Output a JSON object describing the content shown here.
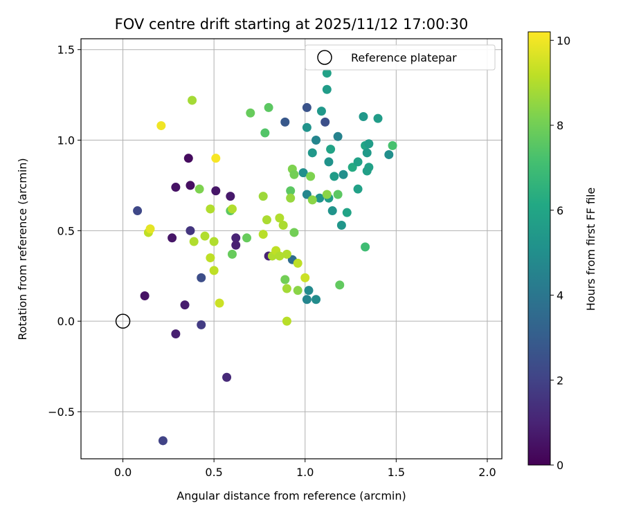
{
  "chart_data": {
    "type": "scatter",
    "title": "FOV centre drift starting at 2025/11/12 17:00:30",
    "xlabel": "Angular distance from reference (arcmin)",
    "ylabel": "Rotation from reference (arcmin)",
    "xlim": [
      -0.23,
      2.08
    ],
    "ylim": [
      -0.76,
      1.56
    ],
    "xticks": [
      0.0,
      0.5,
      1.0,
      1.5,
      2.0
    ],
    "xtick_labels": [
      "0.0",
      "0.5",
      "1.0",
      "1.5",
      "2.0"
    ],
    "yticks": [
      -0.5,
      0.0,
      0.5,
      1.0,
      1.5
    ],
    "ytick_labels": [
      "−0.5",
      "0.0",
      "0.5",
      "1.0",
      "1.5"
    ],
    "grid": true,
    "legend": {
      "position": "top-right",
      "entries": [
        "Reference platepar"
      ]
    },
    "reference_point": {
      "x": 0.0,
      "y": 0.0
    },
    "colorbar": {
      "label": "Hours from first FF file",
      "colormap": "viridis",
      "range": [
        0,
        10.2
      ],
      "ticks": [
        0,
        2,
        4,
        6,
        8,
        10
      ],
      "tick_labels": [
        "0",
        "2",
        "4",
        "6",
        "8",
        "10"
      ]
    },
    "points": [
      {
        "x": 0.36,
        "y": 0.9,
        "h": 0.3
      },
      {
        "x": 0.29,
        "y": 0.74,
        "h": 0.5
      },
      {
        "x": 0.37,
        "y": 0.75,
        "h": 0.4
      },
      {
        "x": 0.51,
        "y": 0.72,
        "h": 0.6
      },
      {
        "x": 0.59,
        "y": 0.69,
        "h": 0.7
      },
      {
        "x": 0.27,
        "y": 0.46,
        "h": 0.6
      },
      {
        "x": 0.62,
        "y": 0.46,
        "h": 1.0
      },
      {
        "x": 0.62,
        "y": 0.42,
        "h": 0.9
      },
      {
        "x": 0.12,
        "y": 0.14,
        "h": 0.5
      },
      {
        "x": 0.34,
        "y": 0.09,
        "h": 0.8
      },
      {
        "x": 0.29,
        "y": -0.07,
        "h": 0.9
      },
      {
        "x": 0.57,
        "y": -0.31,
        "h": 1.2
      },
      {
        "x": 0.22,
        "y": -0.66,
        "h": 2.0
      },
      {
        "x": 0.08,
        "y": 0.61,
        "h": 2.2
      },
      {
        "x": 0.37,
        "y": 0.5,
        "h": 1.6
      },
      {
        "x": 0.43,
        "y": 0.24,
        "h": 2.4
      },
      {
        "x": 0.43,
        "y": -0.02,
        "h": 1.8
      },
      {
        "x": 0.8,
        "y": 0.36,
        "h": 1.0
      },
      {
        "x": 0.89,
        "y": 1.1,
        "h": 2.8
      },
      {
        "x": 1.01,
        "y": 1.18,
        "h": 2.6
      },
      {
        "x": 1.11,
        "y": 1.1,
        "h": 2.5
      },
      {
        "x": 0.93,
        "y": 0.34,
        "h": 3.6
      },
      {
        "x": 1.12,
        "y": 1.37,
        "h": 5.8
      },
      {
        "x": 1.12,
        "y": 1.28,
        "h": 5.6
      },
      {
        "x": 1.09,
        "y": 1.16,
        "h": 5.4
      },
      {
        "x": 1.18,
        "y": 1.02,
        "h": 4.5
      },
      {
        "x": 1.06,
        "y": 1.0,
        "h": 4.6
      },
      {
        "x": 1.01,
        "y": 1.07,
        "h": 5.2
      },
      {
        "x": 1.04,
        "y": 0.93,
        "h": 5.4
      },
      {
        "x": 1.14,
        "y": 0.95,
        "h": 5.9
      },
      {
        "x": 1.13,
        "y": 0.88,
        "h": 5.2
      },
      {
        "x": 0.99,
        "y": 0.82,
        "h": 5.0
      },
      {
        "x": 1.16,
        "y": 0.8,
        "h": 5.6
      },
      {
        "x": 1.21,
        "y": 0.81,
        "h": 5.0
      },
      {
        "x": 1.26,
        "y": 0.85,
        "h": 6.2
      },
      {
        "x": 1.29,
        "y": 0.88,
        "h": 5.8
      },
      {
        "x": 1.32,
        "y": 1.13,
        "h": 5.4
      },
      {
        "x": 1.4,
        "y": 1.12,
        "h": 5.6
      },
      {
        "x": 1.33,
        "y": 0.97,
        "h": 6.0
      },
      {
        "x": 1.35,
        "y": 0.98,
        "h": 5.6
      },
      {
        "x": 1.34,
        "y": 0.93,
        "h": 5.5
      },
      {
        "x": 1.35,
        "y": 0.85,
        "h": 5.8
      },
      {
        "x": 1.34,
        "y": 0.83,
        "h": 5.7
      },
      {
        "x": 1.46,
        "y": 0.92,
        "h": 5.0
      },
      {
        "x": 1.48,
        "y": 0.97,
        "h": 7.2
      },
      {
        "x": 1.01,
        "y": 0.7,
        "h": 4.7
      },
      {
        "x": 1.08,
        "y": 0.68,
        "h": 5.2
      },
      {
        "x": 1.13,
        "y": 0.68,
        "h": 5.6
      },
      {
        "x": 1.15,
        "y": 0.61,
        "h": 5.2
      },
      {
        "x": 1.2,
        "y": 0.53,
        "h": 5.3
      },
      {
        "x": 1.23,
        "y": 0.6,
        "h": 5.9
      },
      {
        "x": 1.29,
        "y": 0.73,
        "h": 5.8
      },
      {
        "x": 1.01,
        "y": 0.12,
        "h": 4.6
      },
      {
        "x": 1.02,
        "y": 0.17,
        "h": 4.8
      },
      {
        "x": 1.06,
        "y": 0.12,
        "h": 4.9
      },
      {
        "x": 1.18,
        "y": 0.7,
        "h": 7.6
      },
      {
        "x": 1.12,
        "y": 0.7,
        "h": 8.4
      },
      {
        "x": 1.19,
        "y": 0.2,
        "h": 7.7
      },
      {
        "x": 1.33,
        "y": 0.41,
        "h": 7.0
      },
      {
        "x": 0.7,
        "y": 1.15,
        "h": 7.8
      },
      {
        "x": 0.8,
        "y": 1.18,
        "h": 7.6
      },
      {
        "x": 0.78,
        "y": 1.04,
        "h": 7.4
      },
      {
        "x": 0.59,
        "y": 0.61,
        "h": 7.6
      },
      {
        "x": 0.6,
        "y": 0.37,
        "h": 7.8
      },
      {
        "x": 0.68,
        "y": 0.46,
        "h": 7.8
      },
      {
        "x": 0.92,
        "y": 0.72,
        "h": 7.6
      },
      {
        "x": 0.93,
        "y": 0.84,
        "h": 8.2
      },
      {
        "x": 0.94,
        "y": 0.81,
        "h": 8.0
      },
      {
        "x": 0.94,
        "y": 0.49,
        "h": 8.0
      },
      {
        "x": 0.89,
        "y": 0.23,
        "h": 8.0
      },
      {
        "x": 0.96,
        "y": 0.17,
        "h": 8.4
      },
      {
        "x": 0.42,
        "y": 0.73,
        "h": 8.2
      },
      {
        "x": 1.03,
        "y": 0.8,
        "h": 8.2
      },
      {
        "x": 1.04,
        "y": 0.67,
        "h": 8.4
      },
      {
        "x": 0.38,
        "y": 1.22,
        "h": 8.8
      },
      {
        "x": 0.48,
        "y": 0.62,
        "h": 9.0
      },
      {
        "x": 0.6,
        "y": 0.62,
        "h": 9.0
      },
      {
        "x": 0.77,
        "y": 0.69,
        "h": 8.7
      },
      {
        "x": 0.79,
        "y": 0.56,
        "h": 8.9
      },
      {
        "x": 0.86,
        "y": 0.57,
        "h": 9.0
      },
      {
        "x": 0.88,
        "y": 0.53,
        "h": 8.9
      },
      {
        "x": 0.77,
        "y": 0.48,
        "h": 9.1
      },
      {
        "x": 0.82,
        "y": 0.36,
        "h": 9.0
      },
      {
        "x": 0.84,
        "y": 0.39,
        "h": 9.2
      },
      {
        "x": 0.86,
        "y": 0.36,
        "h": 9.0
      },
      {
        "x": 0.9,
        "y": 0.37,
        "h": 9.0
      },
      {
        "x": 0.96,
        "y": 0.32,
        "h": 9.2
      },
      {
        "x": 1.0,
        "y": 0.24,
        "h": 9.4
      },
      {
        "x": 0.9,
        "y": 0.18,
        "h": 8.8
      },
      {
        "x": 0.92,
        "y": 0.68,
        "h": 8.6
      },
      {
        "x": 0.9,
        "y": 0.0,
        "h": 9.1
      },
      {
        "x": 0.45,
        "y": 0.47,
        "h": 9.0
      },
      {
        "x": 0.5,
        "y": 0.44,
        "h": 9.0
      },
      {
        "x": 0.39,
        "y": 0.44,
        "h": 9.0
      },
      {
        "x": 0.48,
        "y": 0.35,
        "h": 9.2
      },
      {
        "x": 0.5,
        "y": 0.28,
        "h": 9.2
      },
      {
        "x": 0.53,
        "y": 0.1,
        "h": 9.4
      },
      {
        "x": 0.14,
        "y": 0.49,
        "h": 9.2
      },
      {
        "x": 0.15,
        "y": 0.51,
        "h": 9.8
      },
      {
        "x": 0.21,
        "y": 1.08,
        "h": 10.0
      },
      {
        "x": 0.51,
        "y": 0.9,
        "h": 10.1
      }
    ]
  }
}
